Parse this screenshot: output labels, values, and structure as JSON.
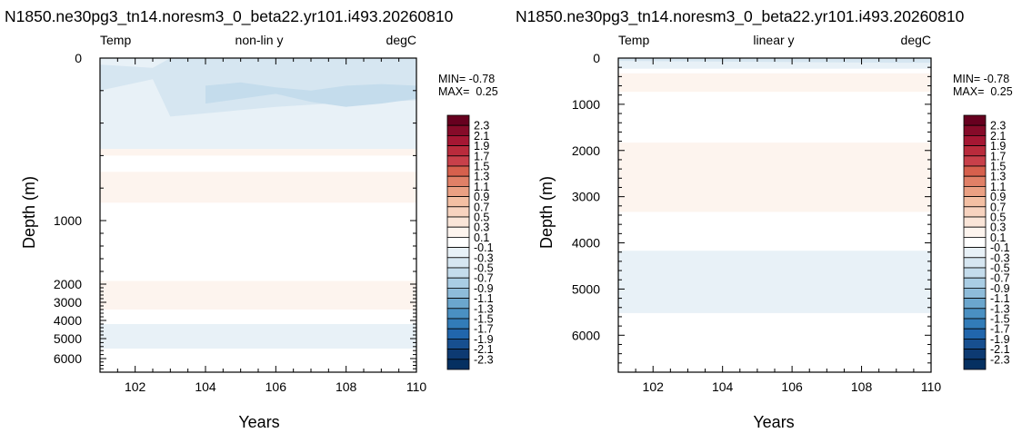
{
  "chart_data": [
    {
      "type": "heatmap",
      "title": "N1850.ne30pg3_tn14.noresm3_0_beta22.yr101.i493.20260810",
      "left_label": "Temp",
      "center_label": "non-lin y",
      "right_label": "degC",
      "xlabel": "Years",
      "ylabel": "Depth (m)",
      "y_scale": "non-linear",
      "xlim": [
        101,
        110
      ],
      "ylim": [
        0,
        6800
      ],
      "x_ticks": [
        "102",
        "104",
        "106",
        "108",
        "110"
      ],
      "y_ticks": [
        "0",
        "1000",
        "2000",
        "3000",
        "4000",
        "5000",
        "6000"
      ],
      "min_label": "MIN= -0.78",
      "max_label": "MAX=  0.25",
      "bands": [
        {
          "top": 0,
          "bottom": 560,
          "value": -0.2
        },
        {
          "top": 560,
          "bottom": 600,
          "value": 0.2
        },
        {
          "top": 700,
          "bottom": 890,
          "value": 0.2
        },
        {
          "top": 1950,
          "bottom": 3400,
          "value": 0.2
        },
        {
          "top": 4200,
          "bottom": 5500,
          "value": -0.2
        }
      ],
      "patches": [
        {
          "x": [
            101.0,
            102.5,
            103.0,
            104.5,
            106.0,
            107.5,
            109.0,
            110.0
          ],
          "top": [
            40,
            60,
            0,
            0,
            0,
            0,
            0,
            0
          ],
          "bottom": [
            200,
            130,
            360,
            330,
            300,
            280,
            270,
            260
          ],
          "value": -0.4
        },
        {
          "x": [
            104.0,
            105.0,
            106.0,
            107.0,
            108.0,
            109.0,
            110.0
          ],
          "top": [
            170,
            150,
            180,
            200,
            170,
            160,
            170
          ],
          "bottom": [
            280,
            250,
            220,
            270,
            300,
            280,
            250
          ],
          "value": -0.6
        }
      ]
    },
    {
      "type": "heatmap",
      "title": "N1850.ne30pg3_tn14.noresm3_0_beta22.yr101.i493.20260810",
      "left_label": "Temp",
      "center_label": "linear y",
      "right_label": "degC",
      "xlabel": "Years",
      "ylabel": "Depth (m)",
      "y_scale": "linear",
      "xlim": [
        101,
        110
      ],
      "ylim": [
        0,
        6800
      ],
      "x_ticks": [
        "102",
        "104",
        "106",
        "108",
        "110"
      ],
      "y_ticks": [
        "0",
        "1000",
        "2000",
        "3000",
        "4000",
        "5000",
        "6000"
      ],
      "min_label": "MIN= -0.78",
      "max_label": "MAX=  0.25",
      "bands": [
        {
          "top": 0,
          "bottom": 230,
          "value": -0.2
        },
        {
          "top": 330,
          "bottom": 730,
          "value": 0.2
        },
        {
          "top": 1830,
          "bottom": 3330,
          "value": 0.2
        },
        {
          "top": 4170,
          "bottom": 5520,
          "value": -0.2
        }
      ],
      "patches": [
        {
          "x": [
            101.0,
            103.0,
            105.0,
            107.0,
            109.0,
            110.0
          ],
          "top": [
            0,
            0,
            0,
            0,
            0,
            0
          ],
          "bottom": [
            60,
            70,
            80,
            90,
            100,
            100
          ],
          "value": -0.4
        }
      ]
    }
  ],
  "colorbar": {
    "labels": [
      "2.3",
      "2.1",
      "1.9",
      "1.7",
      "1.5",
      "1.3",
      "1.1",
      "0.9",
      "0.7",
      "0.5",
      "0.3",
      "0.1",
      "-0.1",
      "-0.3",
      "-0.5",
      "-0.7",
      "-0.9",
      "-1.1",
      "-1.3",
      "-1.5",
      "-1.7",
      "-1.9",
      "-2.1",
      "-2.3"
    ],
    "colors": [
      "#67001f",
      "#860b29",
      "#a51733",
      "#b92b3c",
      "#c8404a",
      "#d6604d",
      "#e08067",
      "#eaa083",
      "#f3bfa3",
      "#f7d3bf",
      "#fae5d8",
      "#fdf4ee",
      "#ffffff",
      "#e8f1f7",
      "#d6e6f1",
      "#c4dcec",
      "#a9cde4",
      "#8ebcda",
      "#6ba6cd",
      "#4a90c2",
      "#327cb8",
      "#2166ac",
      "#174f8f",
      "#0d3a72",
      "#053061"
    ]
  }
}
